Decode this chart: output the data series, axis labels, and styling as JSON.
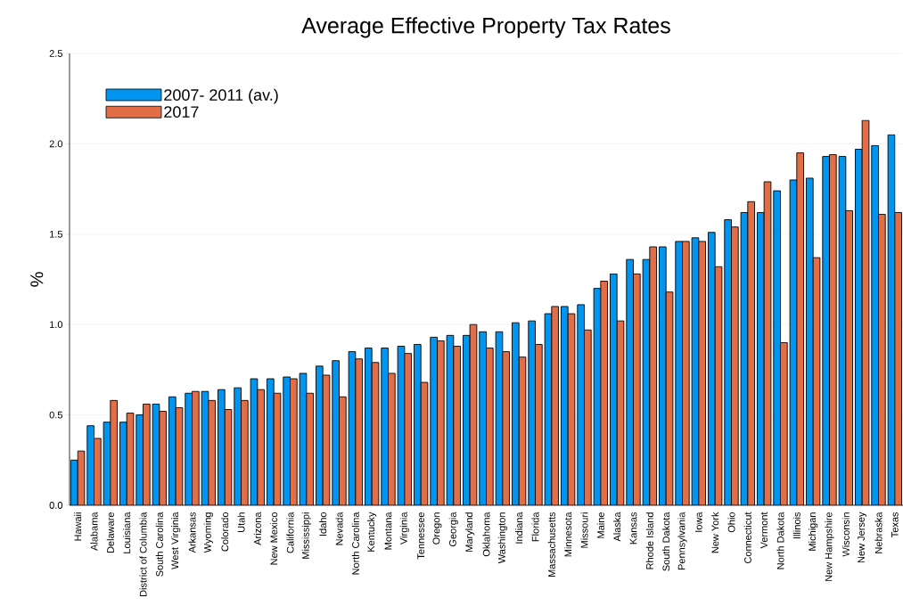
{
  "chart_data": {
    "type": "bar",
    "title": "Average Effective Property Tax Rates",
    "ylabel": "%",
    "categories": [
      "Hawaii",
      "Alabama",
      "Delaware",
      "Louisiana",
      "District of Columbia",
      "South Carolina",
      "West Virginia",
      "Arkansas",
      "Wyoming",
      "Colorado",
      "Utah",
      "Arizona",
      "New Mexico",
      "California",
      "Mississippi",
      "Idaho",
      "Nevada",
      "North Carolina",
      "Kentucky",
      "Montana",
      "Virginia",
      "Tennessee",
      "Oregon",
      "Georgia",
      "Maryland",
      "Oklahoma",
      "Washington",
      "Indiana",
      "Florida",
      "Massachusetts",
      "Minnesota",
      "Missouri",
      "Maine",
      "Alaska",
      "Kansas",
      "Rhode Island",
      "South Dakota",
      "Pennsylvania",
      "Iowa",
      "New York",
      "Ohio",
      "Connecticut",
      "Vermont",
      "North Dakota",
      "Illinois",
      "Michigan",
      "New Hampshire",
      "Wisconsin",
      "New Jersey",
      "Nebraska",
      "Texas"
    ],
    "series": [
      {
        "name": "2007- 2011 (av.)",
        "color": "#0096f0",
        "values": [
          0.25,
          0.44,
          0.46,
          0.46,
          0.5,
          0.56,
          0.6,
          0.62,
          0.63,
          0.64,
          0.65,
          0.7,
          0.7,
          0.71,
          0.73,
          0.77,
          0.8,
          0.85,
          0.87,
          0.87,
          0.88,
          0.89,
          0.93,
          0.94,
          0.94,
          0.96,
          0.96,
          1.01,
          1.02,
          1.06,
          1.1,
          1.11,
          1.2,
          1.28,
          1.36,
          1.36,
          1.43,
          1.46,
          1.48,
          1.51,
          1.58,
          1.62,
          1.62,
          1.74,
          1.8,
          1.81,
          1.93,
          1.93,
          1.97,
          1.99,
          2.05
        ]
      },
      {
        "name": "2017",
        "color": "#e26e48",
        "values": [
          0.3,
          0.37,
          0.58,
          0.51,
          0.56,
          0.52,
          0.54,
          0.63,
          0.58,
          0.53,
          0.58,
          0.64,
          0.62,
          0.7,
          0.62,
          0.72,
          0.6,
          0.81,
          0.79,
          0.73,
          0.84,
          0.68,
          0.91,
          0.88,
          1.0,
          0.87,
          0.85,
          0.82,
          0.89,
          1.1,
          1.06,
          0.97,
          1.24,
          1.02,
          1.28,
          1.43,
          1.18,
          1.46,
          1.46,
          1.32,
          1.54,
          1.68,
          1.79,
          0.9,
          1.95,
          1.37,
          1.94,
          1.63,
          2.13,
          1.61,
          1.62
        ]
      }
    ],
    "ylim": [
      0,
      2.5
    ],
    "yticks": [
      {
        "value": 0,
        "label": "0.0"
      },
      {
        "value": 0.5,
        "label": "0.5"
      },
      {
        "value": 1,
        "label": "1.0"
      },
      {
        "value": 1.5,
        "label": "1.5"
      },
      {
        "value": 2,
        "label": "2.0"
      },
      {
        "value": 2.5,
        "label": "2.5"
      }
    ],
    "grid": "y",
    "legend": "top left"
  }
}
